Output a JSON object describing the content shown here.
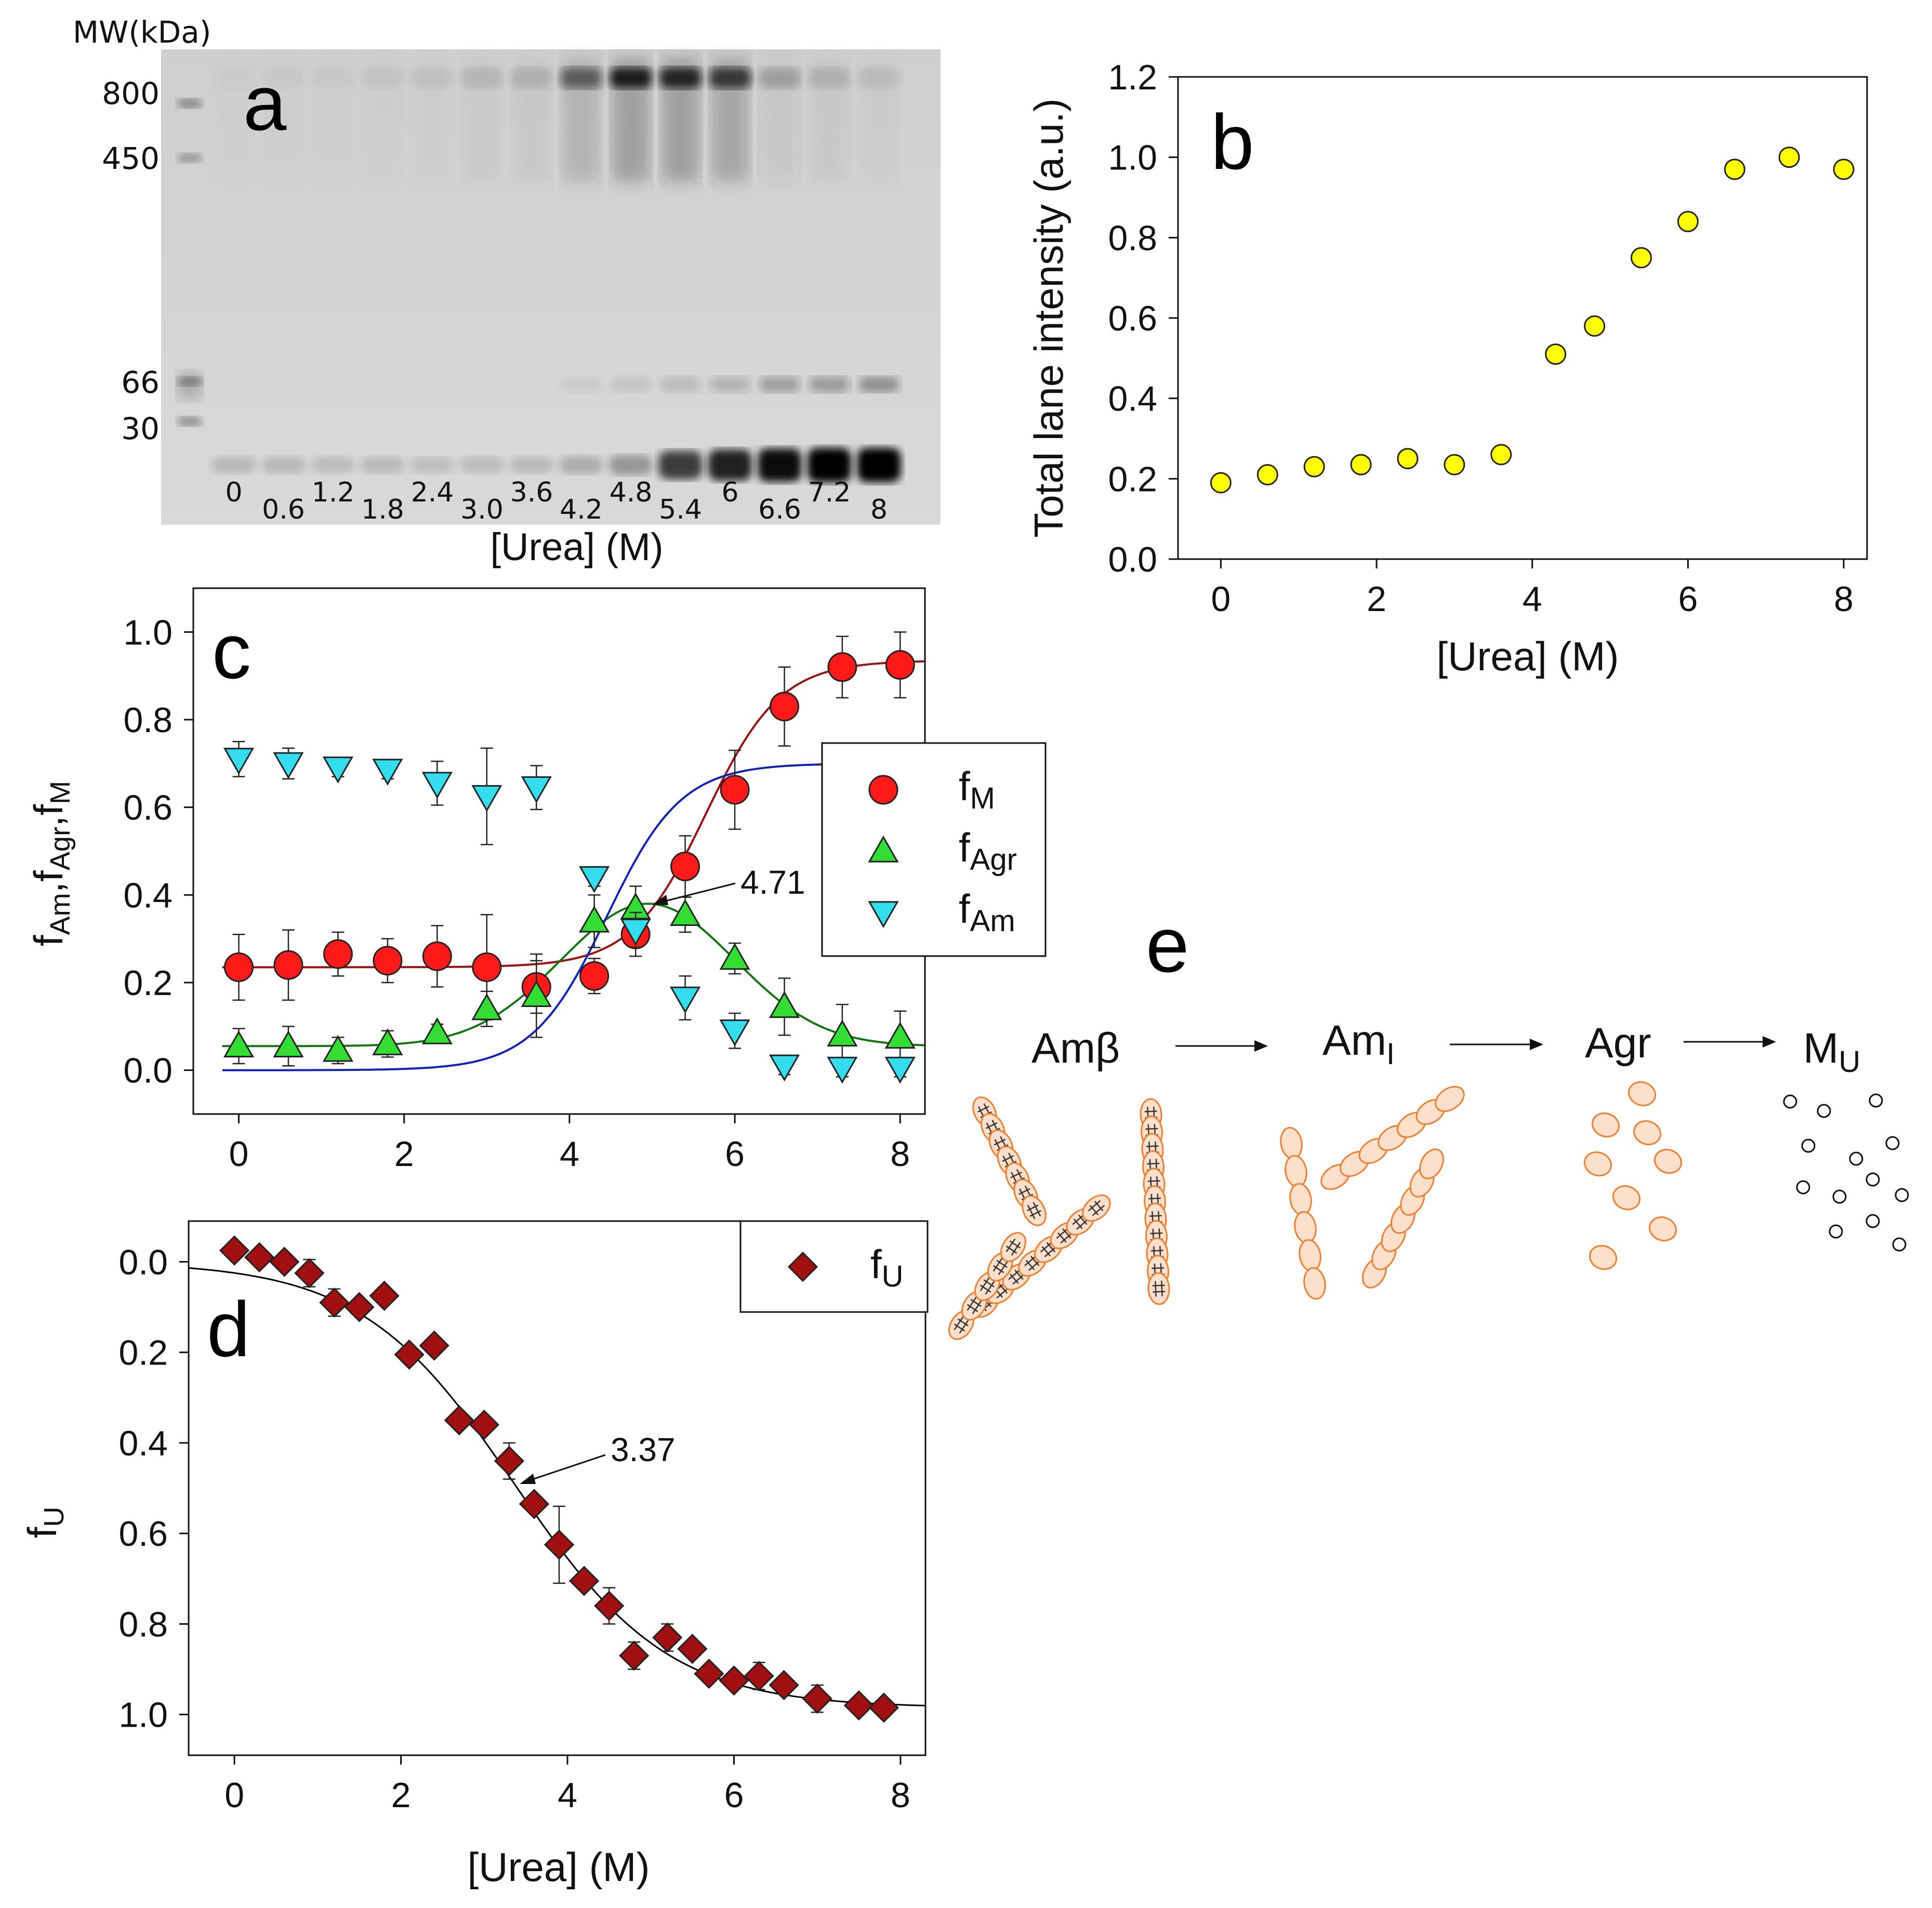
{
  "chart_data": [
    {
      "panel": "a",
      "type": "gel",
      "panel_label": "a",
      "mw_header": "MW(kDa)",
      "mw_markers": [
        "800",
        "450",
        "66",
        "30"
      ],
      "lane_labels": [
        "0",
        "0.6",
        "1.2",
        "1.8",
        "2.4",
        "3.0",
        "3.6",
        "4.2",
        "4.8",
        "5.4",
        "6",
        "6.6",
        "7.2",
        "8"
      ],
      "xlabel": "[Urea] (M)",
      "low_band_intensity": [
        0.15,
        0.15,
        0.13,
        0.14,
        0.12,
        0.13,
        0.14,
        0.2,
        0.3,
        0.72,
        0.85,
        0.95,
        1.0,
        1.0
      ],
      "high_band_intensity": [
        0.02,
        0.03,
        0.03,
        0.05,
        0.06,
        0.1,
        0.12,
        0.55,
        0.9,
        0.85,
        0.75,
        0.2,
        0.12,
        0.08
      ],
      "band66_intensity": [
        0,
        0,
        0,
        0,
        0,
        0,
        0,
        0.05,
        0.08,
        0.12,
        0.2,
        0.3,
        0.32,
        0.4
      ]
    },
    {
      "panel": "b",
      "type": "scatter",
      "panel_label": "b",
      "xlabel": "[Urea] (M)",
      "ylabel": "Total lane intensity (a.u.)",
      "xlim": [
        -0.55,
        8.3
      ],
      "ylim": [
        0,
        1.2
      ],
      "xticks": [
        "0",
        "2",
        "4",
        "6",
        "8"
      ],
      "yticks": [
        "0.0",
        "0.2",
        "0.4",
        "0.6",
        "0.8",
        "1.0",
        "1.2"
      ],
      "marker_color": "#ffff00",
      "x": [
        0,
        0.6,
        1.2,
        1.8,
        2.4,
        3.0,
        3.6,
        4.3,
        4.8,
        5.4,
        6.0,
        6.6,
        7.3,
        8.0
      ],
      "y": [
        0.19,
        0.21,
        0.23,
        0.235,
        0.25,
        0.235,
        0.26,
        0.51,
        0.58,
        0.75,
        0.84,
        0.97,
        1.0,
        0.97
      ]
    },
    {
      "panel": "c",
      "type": "scatter",
      "panel_label": "c",
      "xlabel": "",
      "ylabel": "fAm,fAgr,fM",
      "xlim": [
        -0.55,
        8.3
      ],
      "ylim": [
        -0.1,
        1.1
      ],
      "xticks": [
        "0",
        "2",
        "4",
        "6",
        "8"
      ],
      "yticks": [
        "0.0",
        "0.2",
        "0.4",
        "0.6",
        "0.8",
        "1.0"
      ],
      "annotation": "4.71",
      "annotation_x": 4.71,
      "legend": [
        {
          "base": "f",
          "sub": "M"
        },
        {
          "base": "f",
          "sub": "Agr"
        },
        {
          "base": "f",
          "sub": "Am"
        }
      ],
      "series": [
        {
          "name": "fM",
          "color": "#ff1a1a",
          "line_color": "#9b1111",
          "marker": "circle",
          "x": [
            0,
            0.6,
            1.2,
            1.8,
            2.4,
            3.0,
            3.6,
            4.3,
            4.8,
            5.4,
            6.0,
            6.6,
            7.3,
            8.0
          ],
          "y": [
            0.235,
            0.24,
            0.265,
            0.25,
            0.26,
            0.235,
            0.19,
            0.215,
            0.31,
            0.465,
            0.64,
            0.83,
            0.92,
            0.925
          ],
          "err": [
            0.075,
            0.08,
            0.05,
            0.05,
            0.07,
            0.12,
            0.06,
            0.04,
            0.05,
            0.07,
            0.09,
            0.09,
            0.07,
            0.075
          ],
          "fit": {
            "bottom": 0.235,
            "top": 0.935,
            "mid": 5.65,
            "slope": 0.45
          }
        },
        {
          "name": "fAgr",
          "color": "#33dd33",
          "line_color": "#117711",
          "marker": "triangle-up",
          "x": [
            0,
            0.6,
            1.2,
            1.8,
            2.4,
            3.0,
            3.6,
            4.3,
            4.8,
            5.4,
            6.0,
            6.6,
            7.3,
            8.0
          ],
          "y": [
            0.055,
            0.055,
            0.045,
            0.06,
            0.085,
            0.14,
            0.17,
            0.34,
            0.37,
            0.355,
            0.255,
            0.145,
            0.08,
            0.075
          ],
          "err": [
            0.04,
            0.045,
            0.03,
            0.03,
            0.02,
            0.04,
            0.095,
            0.06,
            0.05,
            0.04,
            0.035,
            0.065,
            0.07,
            0.06
          ],
          "fit": {
            "base": 0.055,
            "peak": 0.38,
            "center": 4.95,
            "width": 1.05
          }
        },
        {
          "name": "fAm",
          "color": "#33ddee",
          "line_color": "#1122bb",
          "marker": "triangle-down",
          "x": [
            0,
            0.6,
            1.2,
            1.8,
            2.4,
            3.0,
            3.6,
            4.3,
            4.8,
            5.4,
            6.0,
            6.6,
            7.3,
            8.0
          ],
          "y": [
            0.71,
            0.7,
            0.69,
            0.685,
            0.655,
            0.625,
            0.645,
            0.44,
            0.32,
            0.165,
            0.09,
            0.01,
            0.005,
            0.005
          ],
          "err": [
            0.04,
            0.035,
            0.02,
            0.02,
            0.05,
            0.11,
            0.05,
            0.02,
            0.04,
            0.05,
            0.04,
            0.02,
            0.02,
            0.02
          ],
          "fit": {
            "bottom": 0.0,
            "top": 0.7,
            "mid": 4.45,
            "slope": 0.45
          }
        }
      ]
    },
    {
      "panel": "d",
      "type": "scatter",
      "panel_label": "d",
      "xlabel": "[Urea] (M)",
      "ylabel": "fU",
      "ylabel_base": "f",
      "ylabel_sub": "U",
      "xlim": [
        -0.55,
        8.3
      ],
      "ylim": [
        -0.09,
        1.09
      ],
      "y_inverted": true,
      "xticks": [
        "0",
        "2",
        "4",
        "6",
        "8"
      ],
      "yticks": [
        "0.0",
        "0.2",
        "0.4",
        "0.6",
        "0.8",
        "1.0"
      ],
      "annotation": "3.37",
      "annotation_x": 3.37,
      "legend": [
        {
          "base": "f",
          "sub": "U"
        }
      ],
      "series": [
        {
          "name": "fU",
          "color": "#a01010",
          "line_color": "#000000",
          "marker": "diamond",
          "x": [
            0,
            0.3,
            0.6,
            0.9,
            1.2,
            1.5,
            1.8,
            2.1,
            2.4,
            2.7,
            3.0,
            3.3,
            3.6,
            3.9,
            4.2,
            4.5,
            4.8,
            5.2,
            5.5,
            5.7,
            6.0,
            6.3,
            6.6,
            7.0,
            7.5,
            7.8
          ],
          "y": [
            -0.025,
            -0.01,
            0.0,
            0.025,
            0.09,
            0.1,
            0.075,
            0.205,
            0.185,
            0.35,
            0.36,
            0.44,
            0.535,
            0.625,
            0.705,
            0.76,
            0.87,
            0.83,
            0.855,
            0.91,
            0.925,
            0.915,
            0.935,
            0.965,
            0.98,
            0.985
          ],
          "err": [
            0.0,
            0.0,
            0.0,
            0.03,
            0.03,
            0.0,
            0.0,
            0.0,
            0.0,
            0.0,
            0.0,
            0.04,
            0.0,
            0.085,
            0.0,
            0.04,
            0.03,
            0.03,
            0.0,
            0.0,
            0.0,
            0.03,
            0.0,
            0.03,
            0.0,
            0.0
          ],
          "fit": {
            "bottom": 0.0,
            "top": 0.985,
            "mid": 3.37,
            "slope": 0.92
          }
        }
      ]
    },
    {
      "panel": "e",
      "type": "diagram",
      "panel_label": "e",
      "stages": [
        {
          "base": "Amβ",
          "sub": ""
        },
        {
          "base": "Am",
          "sub": "I"
        },
        {
          "base": "Agr",
          "sub": ""
        },
        {
          "base": "M",
          "sub": "U"
        }
      ],
      "blob_fill": "#fde0cc",
      "blob_stroke": "#f08030"
    }
  ]
}
